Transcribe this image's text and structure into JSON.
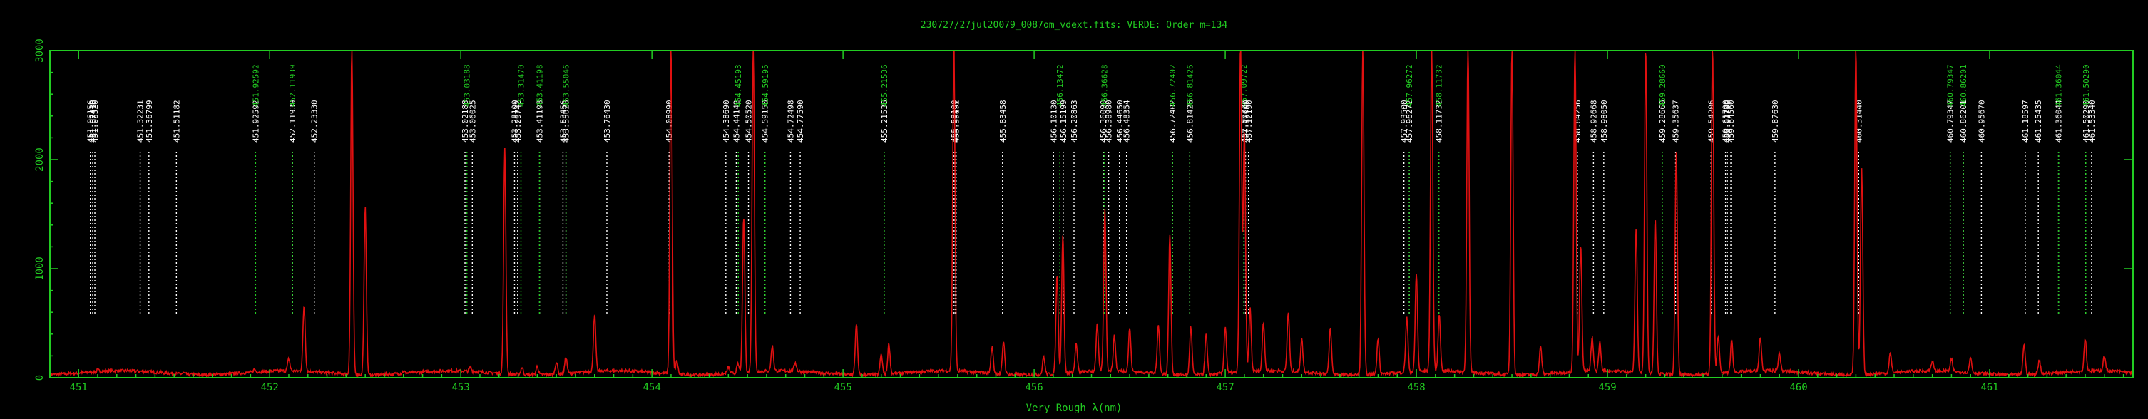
{
  "window": {
    "title": "230727/27jul20079_0087om_vdext.fits: VERDE: Order m=134"
  },
  "chart_data": {
    "type": "line",
    "title": "230727/27jul20079_0087om_vdext.fits: VERDE: Order m=134",
    "xlabel": "Very Rough λ(nm)",
    "ylabel": "",
    "xlim": [
      450.85,
      461.75
    ],
    "ylim": [
      0,
      3000
    ],
    "xticks": [
      "451",
      "452",
      "453",
      "454",
      "455",
      "456",
      "457",
      "458",
      "459",
      "460",
      "461"
    ],
    "yticks": [
      "0",
      "1000",
      "2000",
      "3000"
    ],
    "colors": {
      "axes": "#22cc22",
      "spectrum": "#e01010",
      "line_marker_white": "#ffffff",
      "line_marker_green": "#22cc22"
    },
    "series": [
      {
        "type": "line",
        "continuum": 45,
        "peaks": [
          [
            451.1,
            15
          ],
          [
            451.55,
            12
          ],
          [
            451.92,
            25
          ],
          [
            452.1,
            110
          ],
          [
            452.18,
            600
          ],
          [
            452.43,
            3000
          ],
          [
            452.5,
            1530
          ],
          [
            452.7,
            20
          ],
          [
            453.05,
            35
          ],
          [
            453.23,
            2060
          ],
          [
            453.32,
            65
          ],
          [
            453.4,
            80
          ],
          [
            453.5,
            110
          ],
          [
            453.55,
            150
          ],
          [
            453.7,
            520
          ],
          [
            454.1,
            3000
          ],
          [
            454.13,
            120
          ],
          [
            454.4,
            60
          ],
          [
            454.45,
            80
          ],
          [
            454.48,
            1420
          ],
          [
            454.53,
            3000
          ],
          [
            454.63,
            230
          ],
          [
            454.75,
            80
          ],
          [
            455.07,
            470
          ],
          [
            455.2,
            180
          ],
          [
            455.24,
            280
          ],
          [
            455.58,
            3000
          ],
          [
            455.78,
            240
          ],
          [
            455.84,
            300
          ],
          [
            456.05,
            160
          ],
          [
            456.12,
            900
          ],
          [
            456.15,
            1270
          ],
          [
            456.22,
            260
          ],
          [
            456.33,
            430
          ],
          [
            456.37,
            1480
          ],
          [
            456.42,
            320
          ],
          [
            456.5,
            400
          ],
          [
            456.65,
            450
          ],
          [
            456.71,
            1270
          ],
          [
            456.82,
            440
          ],
          [
            456.9,
            370
          ],
          [
            457.0,
            430
          ],
          [
            457.08,
            3000
          ],
          [
            457.1,
            2200
          ],
          [
            457.13,
            580
          ],
          [
            457.2,
            450
          ],
          [
            457.33,
            540
          ],
          [
            457.4,
            300
          ],
          [
            457.55,
            420
          ],
          [
            457.72,
            3000
          ],
          [
            457.8,
            330
          ],
          [
            457.95,
            500
          ],
          [
            458.0,
            900
          ],
          [
            458.08,
            3000
          ],
          [
            458.12,
            520
          ],
          [
            458.27,
            3000
          ],
          [
            458.5,
            3000
          ],
          [
            458.65,
            250
          ],
          [
            458.83,
            3000
          ],
          [
            458.86,
            1150
          ],
          [
            458.92,
            300
          ],
          [
            458.96,
            260
          ],
          [
            459.15,
            1320
          ],
          [
            459.2,
            3000
          ],
          [
            459.25,
            1430
          ],
          [
            459.36,
            2040
          ],
          [
            459.55,
            3000
          ],
          [
            459.58,
            350
          ],
          [
            459.65,
            290
          ],
          [
            459.8,
            300
          ],
          [
            459.9,
            160
          ],
          [
            460.3,
            3000
          ],
          [
            460.33,
            1900
          ],
          [
            460.48,
            180
          ],
          [
            460.7,
            90
          ],
          [
            460.8,
            110
          ],
          [
            460.9,
            140
          ],
          [
            461.18,
            280
          ],
          [
            461.26,
            130
          ],
          [
            461.5,
            300
          ],
          [
            461.6,
            140
          ]
        ]
      }
    ],
    "line_markers": [
      {
        "wavelength": 451.0616,
        "label": "451.06156",
        "color": "white"
      },
      {
        "wavelength": 451.0741,
        "label": "451.07410",
        "color": "white"
      },
      {
        "wavelength": 451.0852,
        "label": "451.08520",
        "color": "white"
      },
      {
        "wavelength": 451.3223,
        "label": "451.32231",
        "color": "white"
      },
      {
        "wavelength": 451.368,
        "label": "451.36799",
        "color": "white"
      },
      {
        "wavelength": 451.5118,
        "label": "451.51182",
        "color": "white"
      },
      {
        "wavelength": 451.9259,
        "label": "451.92592",
        "color": "white"
      },
      {
        "wavelength": 451.9259,
        "label": "451.92592",
        "color": "green"
      },
      {
        "wavelength": 452.1194,
        "label": "452.11939",
        "color": "white"
      },
      {
        "wavelength": 452.1193,
        "label": "452.11939",
        "color": "green"
      },
      {
        "wavelength": 452.2333,
        "label": "452.23330",
        "color": "white"
      },
      {
        "wavelength": 453.0219,
        "label": "453.02188",
        "color": "white"
      },
      {
        "wavelength": 453.0319,
        "label": "453.03188",
        "color": "green"
      },
      {
        "wavelength": 453.0603,
        "label": "453.06025",
        "color": "white"
      },
      {
        "wavelength": 453.281,
        "label": "453.28100",
        "color": "white"
      },
      {
        "wavelength": 453.2974,
        "label": "453.29742",
        "color": "white"
      },
      {
        "wavelength": 453.3147,
        "label": "453.31470",
        "color": "green"
      },
      {
        "wavelength": 453.412,
        "label": "453.41198",
        "color": "white"
      },
      {
        "wavelength": 453.4119,
        "label": "453.41198",
        "color": "green"
      },
      {
        "wavelength": 453.5346,
        "label": "453.53456",
        "color": "white"
      },
      {
        "wavelength": 453.5502,
        "label": "453.55020",
        "color": "white"
      },
      {
        "wavelength": 453.5505,
        "label": "453.55046",
        "color": "green"
      },
      {
        "wavelength": 453.7643,
        "label": "453.76430",
        "color": "white"
      },
      {
        "wavelength": 454.0899,
        "label": "454.08990",
        "color": "white"
      },
      {
        "wavelength": 454.3869,
        "label": "454.38690",
        "color": "white"
      },
      {
        "wavelength": 454.4414,
        "label": "454.44142",
        "color": "white"
      },
      {
        "wavelength": 454.4519,
        "label": "454.45193",
        "color": "green"
      },
      {
        "wavelength": 454.5052,
        "label": "454.50520",
        "color": "white"
      },
      {
        "wavelength": 454.5915,
        "label": "454.59150",
        "color": "white"
      },
      {
        "wavelength": 454.592,
        "label": "454.59195",
        "color": "green"
      },
      {
        "wavelength": 454.725,
        "label": "454.72498",
        "color": "white"
      },
      {
        "wavelength": 454.7759,
        "label": "454.77590",
        "color": "white"
      },
      {
        "wavelength": 455.2154,
        "label": "455.21536",
        "color": "white"
      },
      {
        "wavelength": 455.2154,
        "label": "455.21536",
        "color": "green"
      },
      {
        "wavelength": 455.581,
        "label": "455.58100",
        "color": "white"
      },
      {
        "wavelength": 455.5882,
        "label": "455.58821",
        "color": "white"
      },
      {
        "wavelength": 455.5919,
        "label": "455.59192",
        "color": "white"
      },
      {
        "wavelength": 455.8346,
        "label": "455.83458",
        "color": "white"
      },
      {
        "wavelength": 456.1013,
        "label": "456.10130",
        "color": "white"
      },
      {
        "wavelength": 456.1347,
        "label": "456.13472",
        "color": "green"
      },
      {
        "wavelength": 456.152,
        "label": "456.15199",
        "color": "white"
      },
      {
        "wavelength": 456.2086,
        "label": "456.20863",
        "color": "white"
      },
      {
        "wavelength": 456.3609,
        "label": "456.36090",
        "color": "white"
      },
      {
        "wavelength": 456.3663,
        "label": "456.36628",
        "color": "green"
      },
      {
        "wavelength": 456.3898,
        "label": "456.38980",
        "color": "white"
      },
      {
        "wavelength": 456.4465,
        "label": "456.44650",
        "color": "white"
      },
      {
        "wavelength": 456.4835,
        "label": "456.48354",
        "color": "white"
      },
      {
        "wavelength": 456.724,
        "label": "456.72402",
        "color": "white"
      },
      {
        "wavelength": 456.724,
        "label": "456.72402",
        "color": "green"
      },
      {
        "wavelength": 456.8143,
        "label": "456.81426",
        "color": "white"
      },
      {
        "wavelength": 456.8143,
        "label": "456.81426",
        "color": "green"
      },
      {
        "wavelength": 457.0972,
        "label": "457.09722",
        "color": "white"
      },
      {
        "wavelength": 457.0972,
        "label": "457.09722",
        "color": "green"
      },
      {
        "wavelength": 457.106,
        "label": "457.10600",
        "color": "white"
      },
      {
        "wavelength": 457.1219,
        "label": "457.12190",
        "color": "white"
      },
      {
        "wavelength": 457.935,
        "label": "457.93500",
        "color": "white"
      },
      {
        "wavelength": 457.9627,
        "label": "457.96272",
        "color": "white"
      },
      {
        "wavelength": 457.9627,
        "label": "457.96272",
        "color": "green"
      },
      {
        "wavelength": 458.1173,
        "label": "458.11732",
        "color": "white"
      },
      {
        "wavelength": 458.1173,
        "label": "458.11732",
        "color": "green"
      },
      {
        "wavelength": 458.8425,
        "label": "458.84256",
        "color": "white"
      },
      {
        "wavelength": 458.9267,
        "label": "458.92668",
        "color": "white"
      },
      {
        "wavelength": 458.9805,
        "label": "458.98050",
        "color": "white"
      },
      {
        "wavelength": 459.2866,
        "label": "459.28660",
        "color": "white"
      },
      {
        "wavelength": 459.2866,
        "label": "459.28660",
        "color": "green"
      },
      {
        "wavelength": 459.3564,
        "label": "459.35637",
        "color": "white"
      },
      {
        "wavelength": 459.5421,
        "label": "459.54206",
        "color": "white"
      },
      {
        "wavelength": 459.6179,
        "label": "459.61790",
        "color": "white"
      },
      {
        "wavelength": 459.627,
        "label": "459.62700",
        "color": "white"
      },
      {
        "wavelength": 459.6456,
        "label": "459.64560",
        "color": "white"
      },
      {
        "wavelength": 459.8763,
        "label": "459.87630",
        "color": "white"
      },
      {
        "wavelength": 460.3144,
        "label": "460.31440",
        "color": "white"
      },
      {
        "wavelength": 460.7935,
        "label": "460.79347",
        "color": "white"
      },
      {
        "wavelength": 460.7935,
        "label": "460.79347",
        "color": "green"
      },
      {
        "wavelength": 460.862,
        "label": "460.86201",
        "color": "white"
      },
      {
        "wavelength": 460.862,
        "label": "460.86201",
        "color": "green"
      },
      {
        "wavelength": 460.9567,
        "label": "460.95670",
        "color": "white"
      },
      {
        "wavelength": 461.186,
        "label": "461.18597",
        "color": "white"
      },
      {
        "wavelength": 461.2544,
        "label": "461.25435",
        "color": "white"
      },
      {
        "wavelength": 461.3604,
        "label": "461.36044",
        "color": "white"
      },
      {
        "wavelength": 461.3604,
        "label": "461.36044",
        "color": "green"
      },
      {
        "wavelength": 461.5029,
        "label": "461.50290",
        "color": "white"
      },
      {
        "wavelength": 461.5029,
        "label": "461.50290",
        "color": "green"
      },
      {
        "wavelength": 461.5334,
        "label": "461.53340",
        "color": "white"
      }
    ]
  }
}
